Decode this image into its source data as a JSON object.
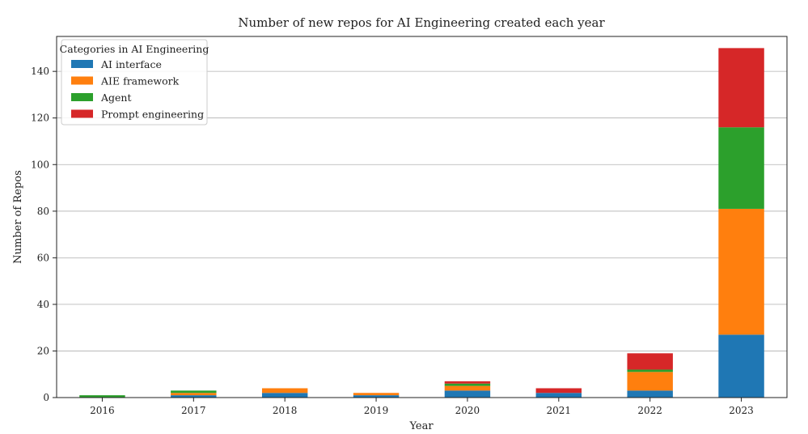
{
  "chart_data": {
    "type": "bar",
    "stacked": true,
    "title": "Number of new repos for AI Engineering created each year",
    "xlabel": "Year",
    "ylabel": "Number of Repos",
    "ylim": [
      0,
      155
    ],
    "yticks": [
      0,
      20,
      40,
      60,
      80,
      100,
      120,
      140
    ],
    "grid": "y",
    "categories": [
      "2016",
      "2017",
      "2018",
      "2019",
      "2020",
      "2021",
      "2022",
      "2023"
    ],
    "legend": {
      "title": "Categories in AI Engineering",
      "placement": "top-left"
    },
    "series": [
      {
        "name": "AI interface",
        "color": "#1f77b4",
        "values": [
          0,
          1,
          2,
          1,
          3,
          2,
          3,
          27
        ]
      },
      {
        "name": "AIE framework",
        "color": "#ff7f0e",
        "values": [
          0,
          1,
          2,
          1,
          2,
          0,
          8,
          54
        ]
      },
      {
        "name": "Agent",
        "color": "#2ca02c",
        "values": [
          1,
          1,
          0,
          0,
          1,
          0,
          1,
          35
        ]
      },
      {
        "name": "Prompt engineering",
        "color": "#d62728",
        "values": [
          0,
          0,
          0,
          0,
          1,
          2,
          7,
          34
        ]
      }
    ]
  }
}
